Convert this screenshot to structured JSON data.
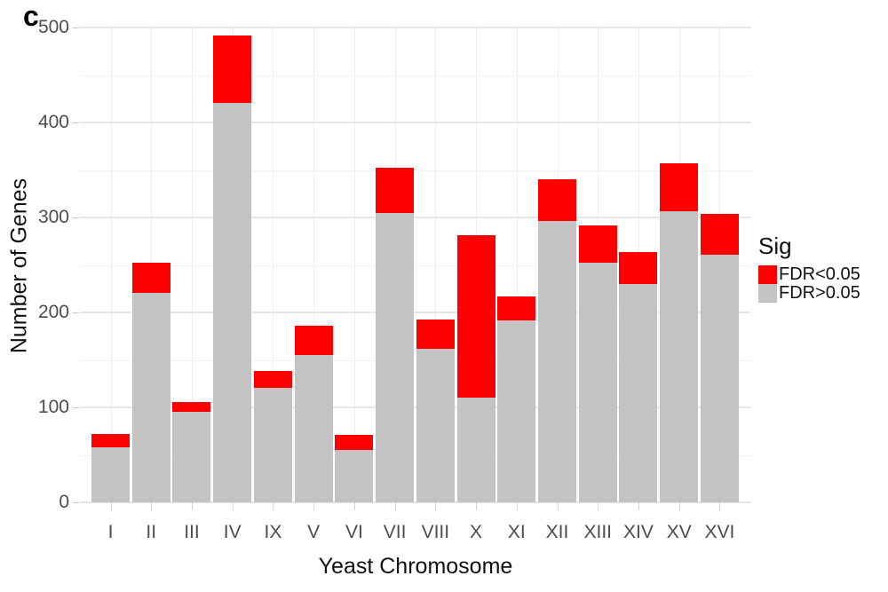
{
  "panel_label": "c",
  "chart_data": {
    "type": "bar",
    "subtype": "stacked",
    "title": "",
    "xlabel": "Yeast Chromosome",
    "ylabel": "Number of Genes",
    "ylim": [
      0,
      500
    ],
    "yticks": [
      0,
      100,
      200,
      300,
      400,
      500
    ],
    "yticks_minor": [
      50,
      150,
      250,
      350,
      450
    ],
    "grid": "on",
    "categories": [
      "I",
      "II",
      "III",
      "IV",
      "IX",
      "V",
      "VI",
      "VII",
      "VIII",
      "X",
      "XI",
      "XII",
      "XIII",
      "XIV",
      "XV",
      "XVI"
    ],
    "series": [
      {
        "name": "FDR<0.05",
        "color": "#fe0000",
        "position": "top",
        "values": [
          14,
          31,
          11,
          71,
          17,
          31,
          16,
          47,
          31,
          171,
          25,
          44,
          40,
          34,
          50,
          43
        ]
      },
      {
        "name": "FDR>0.05",
        "color": "#c3c3c3",
        "position": "bottom",
        "values": [
          58,
          221,
          95,
          421,
          121,
          155,
          55,
          305,
          162,
          110,
          192,
          296,
          252,
          230,
          307,
          261
        ]
      }
    ],
    "totals": [
      72,
      252,
      106,
      492,
      138,
      186,
      71,
      352,
      193,
      281,
      217,
      340,
      292,
      264,
      357,
      304
    ],
    "legend": {
      "position": "right",
      "title": "Sig",
      "entries": [
        {
          "label": "FDR<0.05",
          "color": "#fe0000"
        },
        {
          "label": "FDR>0.05",
          "color": "#c3c3c3"
        }
      ]
    }
  }
}
